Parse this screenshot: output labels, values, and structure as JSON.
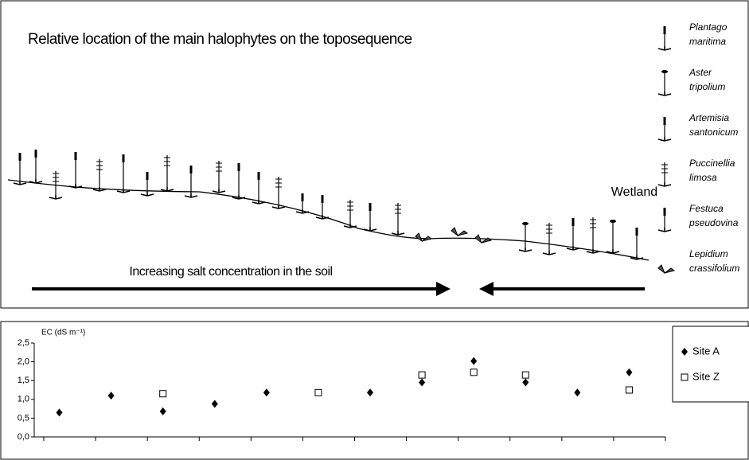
{
  "header": {
    "title": "Relative location of the main halophytes on the toposequence",
    "wetland": "Wetland",
    "arrow_label": "Increasing salt concentration in the soil"
  },
  "species": [
    [
      "Plantago",
      "maritima"
    ],
    [
      "Aster",
      "tripolium"
    ],
    [
      "Artemisia",
      "santonicum"
    ],
    [
      "Puccinellia",
      "limosa"
    ],
    [
      "Festuca",
      "pseudovina"
    ],
    [
      "Lepidium",
      "crassifolium"
    ]
  ],
  "chart_data": {
    "type": "scatter",
    "y_label": "EC (dS m⁻¹)",
    "categories": [
      null,
      null,
      null,
      null,
      null,
      null,
      null,
      null,
      null,
      null,
      null,
      null
    ],
    "series": [
      {
        "name": "Site A",
        "color": "#000000",
        "marker": "diamond",
        "values": [
          0.65,
          1.1,
          0.68,
          0.88,
          1.18,
          null,
          1.18,
          1.45,
          2.02,
          1.45,
          1.18,
          1.72
        ]
      },
      {
        "name": "Site Z",
        "color": "#000000",
        "marker": "square-open",
        "values": [
          null,
          null,
          1.15,
          null,
          null,
          1.18,
          null,
          1.65,
          1.72,
          1.65,
          null,
          1.25
        ]
      }
    ],
    "ylim": [
      0,
      2.5
    ],
    "yticks": [
      {
        "value": 0,
        "label": "0,0"
      },
      {
        "value": 0.5,
        "label": "0,5"
      },
      {
        "value": 1,
        "label": "1,0"
      },
      {
        "value": 1.5,
        "label": "1,5"
      },
      {
        "value": 2,
        "label": "2,0"
      },
      {
        "value": 2.5,
        "label": "2,5"
      }
    ],
    "legend": "top-right"
  }
}
